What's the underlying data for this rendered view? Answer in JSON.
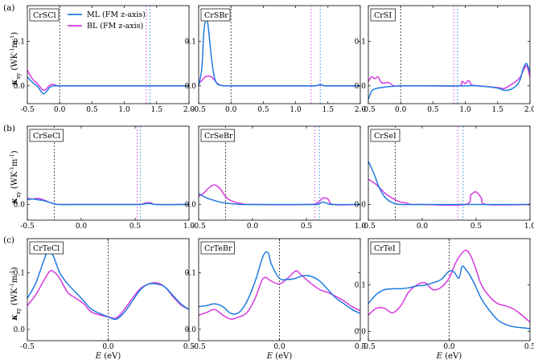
{
  "figure": {
    "row_letters": [
      "(a)",
      "(b)",
      "(c)"
    ],
    "ylabel_main": "κ",
    "ylabel_sub": "xy",
    "ylabel_unit": " (WK",
    "ylabel_exp1": "-1",
    "ylabel_mid": "m",
    "ylabel_exp2": "-1",
    "ylabel_close": ")",
    "xlabel_main": "E",
    "xlabel_unit": " (eV)",
    "legend": [
      {
        "label": "ML (FM z-axis)",
        "color": "#1f7ae0"
      },
      {
        "label": "BL  (FM z-axis)",
        "color": "#d63ae0"
      }
    ]
  },
  "chart_data": [
    {
      "type": "line",
      "title": "CrSCl",
      "xlim": [
        -0.5,
        2.0
      ],
      "ylim": [
        -0.04,
        0.18
      ],
      "xticks": [
        "-0.5",
        "0.0",
        "0.5",
        "1.0",
        "1.5",
        "2.0"
      ],
      "yticks": [
        "0.0",
        "0.1"
      ],
      "vlines": {
        "zero": 0.0,
        "ml_gap": 1.4,
        "bl_gap": 1.34
      },
      "series": [
        {
          "name": "ML (FM z-axis)",
          "x": [
            -0.5,
            -0.45,
            -0.4,
            -0.35,
            -0.3,
            -0.25,
            -0.2,
            -0.15,
            -0.1,
            -0.05,
            0.0,
            0.5,
            1.0,
            1.5,
            2.0
          ],
          "y": [
            0.02,
            0.012,
            0.005,
            0.0,
            -0.01,
            -0.018,
            -0.012,
            -0.003,
            0.0,
            0.0,
            0.0,
            0.0,
            0.0,
            0.0,
            0.0
          ]
        },
        {
          "name": "BL  (FM z-axis)",
          "x": [
            -0.5,
            -0.45,
            -0.4,
            -0.35,
            -0.3,
            -0.25,
            -0.2,
            -0.15,
            -0.1,
            -0.05,
            0.0,
            0.5,
            1.0,
            1.5,
            2.0
          ],
          "y": [
            0.035,
            0.022,
            0.012,
            0.006,
            -0.003,
            -0.01,
            -0.006,
            0.002,
            0.003,
            0.001,
            0.0,
            0.0,
            0.0,
            0.0,
            0.0
          ]
        }
      ]
    },
    {
      "type": "line",
      "title": "CrSBr",
      "xlim": [
        -0.5,
        2.0
      ],
      "ylim": [
        -0.04,
        0.18
      ],
      "xticks": [
        "-0.5",
        "0.0",
        "0.5",
        "1.0",
        "1.5",
        "2.0"
      ],
      "yticks": [
        "0.0",
        "0.1"
      ],
      "vlines": {
        "zero": 0.0,
        "ml_gap": 1.38,
        "bl_gap": 1.24
      },
      "series": [
        {
          "name": "ML (FM z-axis)",
          "x": [
            -0.5,
            -0.45,
            -0.42,
            -0.38,
            -0.35,
            -0.3,
            -0.25,
            -0.2,
            -0.15,
            -0.1,
            0.0,
            0.5,
            1.0,
            1.3,
            1.38,
            1.45,
            1.6,
            2.0
          ],
          "y": [
            0.0,
            0.04,
            0.12,
            0.153,
            0.13,
            0.06,
            0.015,
            0.003,
            0.001,
            0.0,
            0.0,
            0.0,
            0.0,
            0.0,
            0.003,
            0.0,
            0.0,
            0.0
          ]
        },
        {
          "name": "BL  (FM z-axis)",
          "x": [
            -0.5,
            -0.45,
            -0.4,
            -0.35,
            -0.3,
            -0.25,
            -0.2,
            -0.15,
            -0.1,
            0.0,
            0.5,
            1.0,
            1.3,
            1.38,
            1.45,
            1.6,
            2.0
          ],
          "y": [
            0.005,
            0.012,
            0.02,
            0.022,
            0.02,
            0.012,
            0.004,
            0.001,
            0.0,
            0.0,
            0.0,
            0.0,
            0.0,
            0.002,
            0.0,
            0.0,
            0.0
          ]
        }
      ]
    },
    {
      "type": "line",
      "title": "CrSI",
      "xlim": [
        -0.5,
        2.0
      ],
      "ylim": [
        -0.04,
        0.18
      ],
      "xticks": [
        "-0.5",
        "0.0",
        "0.5",
        "1.0",
        "1.5",
        "2.0"
      ],
      "yticks": [
        "0.0",
        "0.1"
      ],
      "vlines": {
        "zero": 0.0,
        "ml_gap": 0.88,
        "bl_gap": 0.82
      },
      "series": [
        {
          "name": "ML (FM z-axis)",
          "x": [
            -0.5,
            -0.45,
            -0.4,
            -0.35,
            -0.3,
            -0.2,
            -0.1,
            0.0,
            0.5,
            1.0,
            1.2,
            1.5,
            1.6,
            1.7,
            1.8,
            1.85,
            1.9,
            1.95,
            2.0
          ],
          "y": [
            -0.03,
            -0.012,
            -0.007,
            -0.005,
            -0.004,
            -0.002,
            -0.001,
            0.0,
            0.0,
            0.0,
            0.0,
            -0.005,
            -0.01,
            -0.008,
            0.002,
            0.015,
            0.04,
            0.05,
            0.03
          ]
        },
        {
          "name": "BL  (FM z-axis)",
          "x": [
            -0.5,
            -0.45,
            -0.4,
            -0.35,
            -0.3,
            -0.25,
            -0.2,
            -0.15,
            -0.1,
            0.0,
            0.5,
            0.9,
            0.95,
            1.0,
            1.05,
            1.1,
            1.2,
            1.5,
            1.6,
            1.7,
            1.8,
            1.85,
            1.9,
            1.95,
            2.0
          ],
          "y": [
            0.01,
            0.02,
            0.016,
            0.02,
            0.008,
            0.006,
            0.008,
            0.004,
            0.0,
            0.0,
            0.0,
            0.0,
            0.01,
            0.005,
            0.012,
            0.002,
            0.0,
            -0.004,
            -0.006,
            0.002,
            0.012,
            0.02,
            0.035,
            0.045,
            0.02
          ]
        }
      ]
    },
    {
      "type": "line",
      "title": "CrSeCl",
      "xlim": [
        -0.5,
        1.0
      ],
      "ylim": [
        -0.02,
        0.1
      ],
      "xticks": [
        "-0.5",
        "0.0",
        "0.5",
        "1.0"
      ],
      "yticks": [
        "0.0"
      ],
      "vlines": {
        "zero": -0.25,
        "ml_gap": 0.55,
        "bl_gap": 0.52
      },
      "series": [
        {
          "name": "ML (FM z-axis)",
          "x": [
            -0.5,
            -0.45,
            -0.4,
            -0.35,
            -0.3,
            -0.25,
            -0.2,
            0.0,
            0.5,
            0.55,
            0.6,
            0.65,
            0.7,
            1.0
          ],
          "y": [
            0.006,
            0.007,
            0.006,
            0.005,
            0.003,
            0.001,
            0.0,
            0.0,
            0.0,
            0.0,
            0.001,
            0.001,
            0.0,
            0.0
          ]
        },
        {
          "name": "BL  (FM z-axis)",
          "x": [
            -0.5,
            -0.45,
            -0.4,
            -0.35,
            -0.3,
            -0.25,
            -0.2,
            0.0,
            0.5,
            0.55,
            0.6,
            0.65,
            0.7,
            1.0
          ],
          "y": [
            0.008,
            0.007,
            0.008,
            0.006,
            0.003,
            0.001,
            0.0,
            0.0,
            0.0,
            0.0,
            0.002,
            0.002,
            0.0,
            0.0
          ]
        }
      ]
    },
    {
      "type": "line",
      "title": "CrSeBr",
      "xlim": [
        -0.5,
        1.0
      ],
      "ylim": [
        -0.02,
        0.1
      ],
      "xticks": [
        "-0.5",
        "0.0",
        "0.5",
        "1.0"
      ],
      "yticks": [
        "0.0"
      ],
      "vlines": {
        "zero": -0.25,
        "ml_gap": 0.62,
        "bl_gap": 0.58
      },
      "series": [
        {
          "name": "ML (FM z-axis)",
          "x": [
            -0.5,
            -0.45,
            -0.4,
            -0.35,
            -0.3,
            -0.25,
            -0.2,
            -0.1,
            0.0,
            0.5,
            0.6,
            0.65,
            0.7,
            0.75,
            1.0
          ],
          "y": [
            0.014,
            0.01,
            0.007,
            0.005,
            0.003,
            0.002,
            0.001,
            0.0,
            0.0,
            0.0,
            0.0,
            0.003,
            0.001,
            0.0,
            0.0
          ]
        },
        {
          "name": "BL  (FM z-axis)",
          "x": [
            -0.5,
            -0.45,
            -0.4,
            -0.35,
            -0.3,
            -0.25,
            -0.2,
            -0.1,
            0.0,
            0.5,
            0.6,
            0.65,
            0.7,
            0.75,
            1.0
          ],
          "y": [
            0.01,
            0.015,
            0.022,
            0.025,
            0.02,
            0.01,
            0.005,
            0.001,
            0.0,
            0.0,
            0.002,
            0.008,
            0.007,
            0.0,
            0.0
          ]
        }
      ]
    },
    {
      "type": "line",
      "title": "CrSeI",
      "xlim": [
        -0.5,
        1.0
      ],
      "ylim": [
        -0.02,
        0.1
      ],
      "xticks": [
        "-0.5",
        "0.0",
        "0.5",
        "1.0"
      ],
      "yticks": [
        "0.0"
      ],
      "vlines": {
        "zero": -0.25,
        "ml_gap": 0.38,
        "bl_gap": 0.33
      },
      "series": [
        {
          "name": "ML (FM z-axis)",
          "x": [
            -0.5,
            -0.45,
            -0.4,
            -0.35,
            -0.3,
            -0.25,
            -0.2,
            -0.1,
            0.0,
            0.5,
            1.0
          ],
          "y": [
            0.055,
            0.04,
            0.022,
            0.01,
            0.004,
            0.001,
            0.0,
            0.0,
            0.0,
            0.0,
            0.0
          ]
        },
        {
          "name": "BL  (FM z-axis)",
          "x": [
            -0.5,
            -0.45,
            -0.4,
            -0.35,
            -0.3,
            -0.25,
            -0.2,
            -0.15,
            -0.1,
            0.0,
            0.4,
            0.45,
            0.5,
            0.55,
            0.6,
            1.0
          ],
          "y": [
            0.032,
            0.028,
            0.022,
            0.015,
            0.01,
            0.006,
            0.003,
            0.002,
            0.0,
            0.0,
            0.0,
            0.012,
            0.016,
            0.008,
            0.0,
            0.0
          ]
        }
      ]
    },
    {
      "type": "line",
      "title": "CrTeCl",
      "xlim": [
        -0.5,
        0.5
      ],
      "ylim": [
        -0.02,
        0.16
      ],
      "xticks": [
        "-0.5",
        "0.0",
        "0.5"
      ],
      "yticks": [
        "0.0",
        "0.1"
      ],
      "vlines": {
        "zero": 0.0
      },
      "series": [
        {
          "name": "ML (FM z-axis)",
          "x": [
            -0.5,
            -0.45,
            -0.4,
            -0.37,
            -0.34,
            -0.3,
            -0.25,
            -0.2,
            -0.15,
            -0.1,
            0.0,
            0.05,
            0.1,
            0.15,
            0.2,
            0.25,
            0.3,
            0.35,
            0.4,
            0.45,
            0.5
          ],
          "y": [
            0.055,
            0.08,
            0.12,
            0.14,
            0.13,
            0.1,
            0.08,
            0.065,
            0.05,
            0.035,
            0.022,
            0.018,
            0.03,
            0.05,
            0.07,
            0.08,
            0.08,
            0.075,
            0.06,
            0.045,
            0.035
          ]
        },
        {
          "name": "BL  (FM z-axis)",
          "x": [
            -0.5,
            -0.45,
            -0.4,
            -0.36,
            -0.33,
            -0.3,
            -0.25,
            -0.2,
            -0.15,
            -0.1,
            0.0,
            0.05,
            0.1,
            0.15,
            0.2,
            0.25,
            0.3,
            0.35,
            0.4,
            0.45,
            0.5
          ],
          "y": [
            0.042,
            0.06,
            0.085,
            0.103,
            0.1,
            0.09,
            0.065,
            0.055,
            0.045,
            0.03,
            0.022,
            0.02,
            0.035,
            0.055,
            0.072,
            0.08,
            0.082,
            0.075,
            0.058,
            0.043,
            0.035
          ]
        }
      ]
    },
    {
      "type": "line",
      "title": "CrTeBr",
      "xlim": [
        -0.5,
        0.5
      ],
      "ylim": [
        -0.02,
        0.16
      ],
      "xticks": [
        "-0.5",
        "0.0",
        "0.5"
      ],
      "yticks": [
        "0.0",
        "0.1"
      ],
      "vlines": {
        "zero": 0.0
      },
      "series": [
        {
          "name": "ML (FM z-axis)",
          "x": [
            -0.5,
            -0.45,
            -0.4,
            -0.35,
            -0.3,
            -0.25,
            -0.2,
            -0.15,
            -0.1,
            -0.07,
            -0.05,
            0.0,
            0.05,
            0.1,
            0.15,
            0.2,
            0.25,
            0.3,
            0.35,
            0.4,
            0.45,
            0.5
          ],
          "y": [
            0.04,
            0.042,
            0.045,
            0.04,
            0.028,
            0.03,
            0.05,
            0.085,
            0.13,
            0.135,
            0.115,
            0.09,
            0.088,
            0.09,
            0.095,
            0.093,
            0.085,
            0.07,
            0.055,
            0.045,
            0.035,
            0.028
          ]
        },
        {
          "name": "BL  (FM z-axis)",
          "x": [
            -0.5,
            -0.45,
            -0.4,
            -0.35,
            -0.3,
            -0.25,
            -0.2,
            -0.15,
            -0.1,
            -0.05,
            0.0,
            0.05,
            0.1,
            0.12,
            0.15,
            0.2,
            0.25,
            0.3,
            0.35,
            0.4,
            0.45,
            0.5
          ],
          "y": [
            0.025,
            0.03,
            0.035,
            0.025,
            0.018,
            0.022,
            0.03,
            0.055,
            0.09,
            0.085,
            0.08,
            0.09,
            0.103,
            0.1,
            0.092,
            0.08,
            0.07,
            0.065,
            0.058,
            0.05,
            0.04,
            0.033
          ]
        }
      ]
    },
    {
      "type": "line",
      "title": "CrTeI",
      "xlim": [
        -0.5,
        0.5
      ],
      "ylim": [
        -0.02,
        0.2
      ],
      "xticks": [
        "-0.5",
        "0.0",
        "0.5"
      ],
      "yticks": [
        "0.0",
        "0.1"
      ],
      "vlines": {
        "zero": 0.0
      },
      "series": [
        {
          "name": "ML (FM z-axis)",
          "x": [
            -0.5,
            -0.45,
            -0.4,
            -0.35,
            -0.3,
            -0.25,
            -0.2,
            -0.15,
            -0.1,
            -0.05,
            0.0,
            0.03,
            0.06,
            0.08,
            0.1,
            0.13,
            0.16,
            0.2,
            0.25,
            0.3,
            0.35,
            0.4,
            0.45,
            0.5
          ],
          "y": [
            0.06,
            0.08,
            0.09,
            0.092,
            0.092,
            0.094,
            0.098,
            0.1,
            0.105,
            0.112,
            0.13,
            0.128,
            0.115,
            0.14,
            0.135,
            0.12,
            0.1,
            0.07,
            0.045,
            0.025,
            0.015,
            0.01,
            0.008,
            0.006
          ]
        },
        {
          "name": "BL  (FM z-axis)",
          "x": [
            -0.5,
            -0.45,
            -0.4,
            -0.35,
            -0.3,
            -0.25,
            -0.2,
            -0.15,
            -0.1,
            -0.05,
            0.0,
            0.03,
            0.06,
            0.1,
            0.13,
            0.16,
            0.2,
            0.25,
            0.3,
            0.35,
            0.4,
            0.45,
            0.5
          ],
          "y": [
            0.035,
            0.05,
            0.05,
            0.04,
            0.055,
            0.085,
            0.1,
            0.105,
            0.09,
            0.095,
            0.115,
            0.14,
            0.16,
            0.175,
            0.165,
            0.14,
            0.1,
            0.075,
            0.06,
            0.055,
            0.048,
            0.035,
            0.02
          ]
        }
      ]
    }
  ]
}
